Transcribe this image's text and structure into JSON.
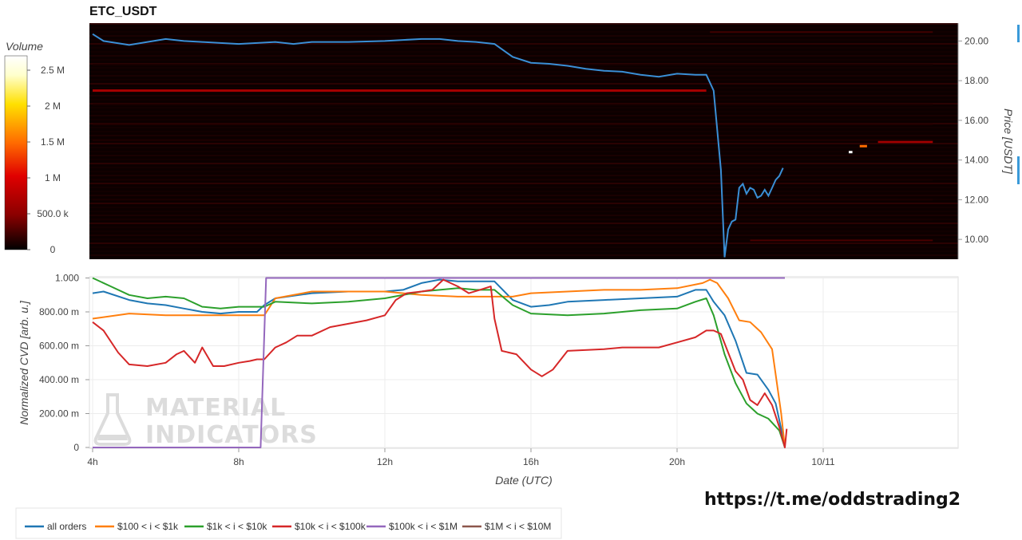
{
  "chart_data": [
    {
      "type": "heatmap",
      "title": "ETC_USDT",
      "ylabel": "Price [USDT]",
      "ylim": [
        9.0,
        20.9
      ],
      "yticks": [
        "10.00",
        "12.00",
        "14.00",
        "16.00",
        "18.00",
        "20.00"
      ],
      "colorbar": {
        "label": "Volume",
        "range": [
          0,
          2700000
        ],
        "ticks": [
          "0",
          "500.0 k",
          "1 M",
          "1.5 M",
          "2 M",
          "2.5 M"
        ],
        "colors": [
          "#000000",
          "#8b0000",
          "#e00000",
          "#ff6a00",
          "#ffe000",
          "#ffffcc",
          "#ffffff"
        ]
      },
      "price_series": {
        "name": "price",
        "color": "#3a8fd6",
        "x": [
          4.0,
          4.3,
          5.0,
          5.5,
          6.0,
          6.5,
          7.0,
          7.5,
          8.0,
          8.5,
          9.0,
          9.5,
          10.0,
          10.5,
          11.0,
          12.0,
          12.5,
          13.0,
          13.5,
          14.0,
          14.5,
          15.0,
          15.5,
          16.0,
          16.5,
          17.0,
          17.5,
          18.0,
          18.5,
          19.0,
          19.5,
          20.0,
          20.5,
          20.8,
          21.0,
          21.2,
          21.3,
          21.4,
          21.5,
          21.6,
          21.7,
          21.8,
          21.9,
          22.0,
          22.1,
          22.2,
          22.3,
          22.4,
          22.5,
          22.6,
          22.7,
          22.8,
          22.9
        ],
        "y": [
          20.35,
          20.0,
          19.8,
          19.95,
          20.1,
          20.0,
          19.95,
          19.9,
          19.85,
          19.9,
          19.95,
          19.85,
          19.95,
          19.95,
          19.95,
          20.0,
          20.05,
          20.1,
          20.1,
          20.0,
          19.95,
          19.85,
          19.2,
          18.9,
          18.85,
          18.75,
          18.6,
          18.5,
          18.45,
          18.3,
          18.2,
          18.35,
          18.3,
          18.3,
          17.5,
          13.5,
          9.1,
          10.5,
          10.9,
          11.0,
          12.6,
          12.8,
          12.3,
          12.6,
          12.5,
          12.1,
          12.2,
          12.5,
          12.2,
          12.6,
          13.0,
          13.2,
          13.6
        ]
      },
      "bands": [
        {
          "price": 17.5,
          "x_start": 4.0,
          "x_end": 20.8,
          "level": 650000
        },
        {
          "price": 20.45,
          "x_start": 20.9,
          "x_end": 27.0,
          "level": 220000
        },
        {
          "price": 14.92,
          "x_start": 25.5,
          "x_end": 27.0,
          "level": 650000
        },
        {
          "price": 14.7,
          "x_start": 25.0,
          "x_end": 25.2,
          "level": 1500000
        },
        {
          "price": 14.4,
          "x_start": 24.7,
          "x_end": 24.8,
          "level": 2700000
        },
        {
          "price": 9.95,
          "x_start": 22.0,
          "x_end": 27.0,
          "level": 250000
        },
        {
          "price": 15.8,
          "x_start": 4.0,
          "x_end": 27.0,
          "level": 120000
        },
        {
          "price": 15.0,
          "x_start": 4.0,
          "x_end": 27.0,
          "level": 100000
        },
        {
          "price": 13.0,
          "x_start": 4.0,
          "x_end": 27.0,
          "level": 80000
        },
        {
          "price": 12.0,
          "x_start": 4.0,
          "x_end": 27.0,
          "level": 90000
        },
        {
          "price": 11.0,
          "x_start": 4.0,
          "x_end": 27.0,
          "level": 70000
        },
        {
          "price": 16.8,
          "x_start": 4.0,
          "x_end": 27.0,
          "level": 90000
        },
        {
          "price": 18.8,
          "x_start": 4.0,
          "x_end": 27.0,
          "level": 80000
        }
      ]
    },
    {
      "type": "line",
      "xlabel": "Date (UTC)",
      "ylabel": "Normalized CVD [arb. u.]",
      "xlim": [
        4.0,
        27.7
      ],
      "ylim": [
        0,
        1.0
      ],
      "xticks": [
        {
          "value": 4,
          "label": "4h"
        },
        {
          "value": 8,
          "label": "8h"
        },
        {
          "value": 12,
          "label": "12h"
        },
        {
          "value": 16,
          "label": "16h"
        },
        {
          "value": 20,
          "label": "20h"
        },
        {
          "value": 24,
          "label": "10/11"
        }
      ],
      "yticks": [
        {
          "value": 0,
          "label": "0"
        },
        {
          "value": 0.2,
          "label": "200.00 m"
        },
        {
          "value": 0.4,
          "label": "400.00 m"
        },
        {
          "value": 0.6,
          "label": "600.00 m"
        },
        {
          "value": 0.8,
          "label": "800.00 m"
        },
        {
          "value": 1.0,
          "label": "1.000"
        }
      ],
      "series": [
        {
          "name": "all orders",
          "color": "#1f77b4",
          "x": [
            4.0,
            4.3,
            5.0,
            5.5,
            6.0,
            6.5,
            7.0,
            7.5,
            8.0,
            8.5,
            8.7,
            9.0,
            10.0,
            11.0,
            12.0,
            12.5,
            13.0,
            13.5,
            14.0,
            14.5,
            15.0,
            15.5,
            16.0,
            16.5,
            17.0,
            18.0,
            19.0,
            20.0,
            20.5,
            20.8,
            21.0,
            21.3,
            21.6,
            21.9,
            22.2,
            22.5,
            22.7,
            22.85,
            22.95
          ],
          "y": [
            0.91,
            0.92,
            0.87,
            0.85,
            0.84,
            0.82,
            0.8,
            0.79,
            0.8,
            0.8,
            0.84,
            0.88,
            0.91,
            0.92,
            0.92,
            0.93,
            0.97,
            0.99,
            0.98,
            0.98,
            0.98,
            0.87,
            0.83,
            0.84,
            0.86,
            0.87,
            0.88,
            0.89,
            0.93,
            0.93,
            0.86,
            0.78,
            0.63,
            0.44,
            0.43,
            0.34,
            0.26,
            0.11,
            0.0
          ]
        },
        {
          "name": "$100 < i < $1k",
          "color": "#ff7f0e",
          "x": [
            4.0,
            5.0,
            6.0,
            7.0,
            8.0,
            8.7,
            9.0,
            10.0,
            11.0,
            12.0,
            13.0,
            14.0,
            15.0,
            15.5,
            16.0,
            17.0,
            18.0,
            19.0,
            20.0,
            20.7,
            20.9,
            21.1,
            21.4,
            21.7,
            22.0,
            22.3,
            22.6,
            22.85,
            22.95
          ],
          "y": [
            0.76,
            0.79,
            0.78,
            0.78,
            0.78,
            0.78,
            0.88,
            0.92,
            0.92,
            0.92,
            0.9,
            0.89,
            0.89,
            0.89,
            0.91,
            0.92,
            0.93,
            0.93,
            0.94,
            0.97,
            0.99,
            0.97,
            0.88,
            0.75,
            0.74,
            0.68,
            0.58,
            0.2,
            0.0
          ]
        },
        {
          "name": "$1k < i < $10k",
          "color": "#2ca02c",
          "x": [
            4.0,
            4.5,
            5.0,
            5.5,
            6.0,
            6.5,
            7.0,
            7.5,
            8.0,
            8.7,
            9.0,
            10.0,
            11.0,
            12.0,
            13.0,
            14.0,
            14.5,
            15.0,
            15.5,
            16.0,
            17.0,
            18.0,
            19.0,
            20.0,
            20.5,
            20.8,
            21.0,
            21.3,
            21.6,
            21.9,
            22.2,
            22.5,
            22.8,
            22.95
          ],
          "y": [
            1.0,
            0.95,
            0.9,
            0.88,
            0.89,
            0.88,
            0.83,
            0.82,
            0.83,
            0.83,
            0.86,
            0.85,
            0.86,
            0.88,
            0.92,
            0.94,
            0.93,
            0.93,
            0.84,
            0.79,
            0.78,
            0.79,
            0.81,
            0.82,
            0.86,
            0.88,
            0.78,
            0.55,
            0.38,
            0.26,
            0.2,
            0.17,
            0.1,
            0.0
          ]
        },
        {
          "name": "$10k < i < $100k",
          "color": "#d62728",
          "x": [
            4.0,
            4.3,
            4.7,
            5.0,
            5.5,
            6.0,
            6.3,
            6.5,
            6.8,
            7.0,
            7.3,
            7.6,
            8.0,
            8.3,
            8.5,
            8.7,
            9.0,
            9.3,
            9.6,
            10.0,
            10.5,
            11.0,
            11.5,
            12.0,
            12.3,
            12.6,
            13.0,
            13.3,
            13.6,
            14.0,
            14.3,
            14.6,
            14.9,
            15.0,
            15.2,
            15.6,
            16.0,
            16.3,
            16.6,
            17.0,
            18.0,
            18.5,
            19.0,
            19.5,
            20.0,
            20.5,
            20.8,
            21.0,
            21.2,
            21.4,
            21.6,
            21.8,
            22.0,
            22.2,
            22.4,
            22.6,
            22.8,
            22.95,
            23.0
          ],
          "y": [
            0.74,
            0.69,
            0.56,
            0.49,
            0.48,
            0.5,
            0.55,
            0.57,
            0.5,
            0.59,
            0.48,
            0.48,
            0.5,
            0.51,
            0.52,
            0.52,
            0.59,
            0.62,
            0.66,
            0.66,
            0.71,
            0.73,
            0.75,
            0.78,
            0.87,
            0.91,
            0.92,
            0.93,
            0.99,
            0.95,
            0.91,
            0.93,
            0.95,
            0.76,
            0.57,
            0.55,
            0.46,
            0.42,
            0.46,
            0.57,
            0.58,
            0.59,
            0.59,
            0.59,
            0.62,
            0.65,
            0.69,
            0.69,
            0.67,
            0.56,
            0.45,
            0.4,
            0.28,
            0.25,
            0.32,
            0.25,
            0.12,
            0.0,
            0.11
          ]
        },
        {
          "name": "$100k < i < $1M",
          "color": "#9467bd",
          "x": [
            4.0,
            8.6,
            8.75,
            22.95
          ],
          "y": [
            0.0,
            0.0,
            1.0,
            1.0
          ]
        },
        {
          "name": "$1M < i < $10M",
          "color": "#8c564b",
          "x": [],
          "y": []
        }
      ]
    }
  ],
  "watermark": {
    "line1": "MATERIAL",
    "line2": "INDICATORS"
  },
  "link": "https://t.me/oddstrading2"
}
